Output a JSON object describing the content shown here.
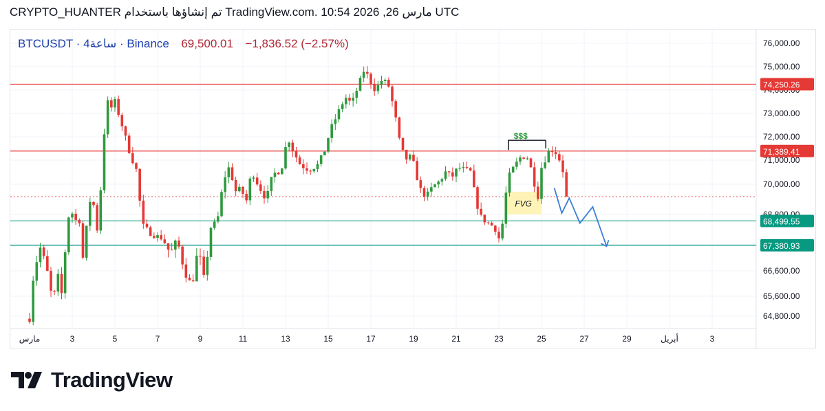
{
  "header": {
    "text": "CRYPTO_HUANTER تم إنشاؤها باستخدام TradingView.com. 10:54 2026 ,26 مارس UTC"
  },
  "legend": {
    "symbol": "BTCUSDT",
    "interval": "4ساعة",
    "exchange": "Binance",
    "price": "69,500.01",
    "change": "−1,836.52",
    "change_pct": "(−2.57%)",
    "separator": "·"
  },
  "brand": {
    "name": "TradingView",
    "logo_icon": "tradingview-logo-icon"
  },
  "colors": {
    "up": "#26a69a",
    "up_body": "#2e9a3e",
    "down": "#e53935",
    "resistance": "#e53935",
    "support": "#089981",
    "projection": "#3b7dd8",
    "fvg": "#fff3b0",
    "liquidity": "#2e9a3e"
  },
  "chart_data": {
    "type": "candlestick",
    "symbol": "BTCUSDT",
    "interval": "4ساعة",
    "exchange": "Binance",
    "x_tick_labels": [
      "مارس",
      "3",
      "5",
      "7",
      "9",
      "11",
      "13",
      "15",
      "17",
      "19",
      "21",
      "23",
      "25",
      "27",
      "29",
      "أبريل",
      "3"
    ],
    "y_tick_labels": [
      "76,000.00",
      "75,000.00",
      "74,000.00",
      "73,000.00",
      "72,000.00",
      "71,000.00",
      "70,000.00",
      "68,800.00",
      "67,400.00",
      "66,600.00",
      "65,600.00",
      "64,800.00"
    ],
    "ylim": [
      64500,
      76500
    ],
    "price_levels": [
      {
        "name": "resistance-upper",
        "value": 74250.26,
        "label": "74,250.26",
        "color": "#e53935"
      },
      {
        "name": "resistance-lower",
        "value": 71389.41,
        "label": "71,389.41",
        "color": "#e53935"
      },
      {
        "name": "support-upper",
        "value": 68499.55,
        "label": "68,499.55",
        "color": "#089981"
      },
      {
        "name": "support-lower",
        "value": 67380.93,
        "label": "67,380.93",
        "color": "#089981"
      }
    ],
    "last_price": 69500.01,
    "annotations": [
      {
        "text": "$$$",
        "type": "liquidity",
        "day_range": [
          23.45,
          24.6
        ],
        "price": 71850
      },
      {
        "text": "FVG",
        "type": "fvg-zone",
        "day_range": [
          23.3,
          25.0
        ],
        "price_range": [
          68800,
          69700
        ]
      }
    ],
    "projection_path": [
      {
        "day": 25.6,
        "price": 69850
      },
      {
        "day": 25.95,
        "price": 68850
      },
      {
        "day": 26.3,
        "price": 69450
      },
      {
        "day": 26.8,
        "price": 68400
      },
      {
        "day": 27.4,
        "price": 69100
      },
      {
        "day": 28.05,
        "price": 67350
      }
    ],
    "waypoints": [
      [
        1.0,
        64700
      ],
      [
        1.2,
        66600
      ],
      [
        1.5,
        67300
      ],
      [
        1.8,
        66700
      ],
      [
        2.1,
        65300
      ],
      [
        2.3,
        66500
      ],
      [
        2.5,
        65700
      ],
      [
        2.9,
        69300
      ],
      [
        3.1,
        68400
      ],
      [
        3.3,
        68800
      ],
      [
        3.5,
        67000
      ],
      [
        3.9,
        69800
      ],
      [
        4.2,
        67900
      ],
      [
        4.6,
        73600
      ],
      [
        4.8,
        73200
      ],
      [
        5.0,
        73500
      ],
      [
        5.3,
        72600
      ],
      [
        5.7,
        71300
      ],
      [
        6.0,
        70600
      ],
      [
        6.3,
        68300
      ],
      [
        6.7,
        67900
      ],
      [
        7.2,
        67700
      ],
      [
        7.6,
        67100
      ],
      [
        7.9,
        67600
      ],
      [
        8.3,
        66500
      ],
      [
        8.6,
        66000
      ],
      [
        8.9,
        67300
      ],
      [
        9.2,
        66200
      ],
      [
        9.5,
        68200
      ],
      [
        9.8,
        68500
      ],
      [
        10.1,
        70200
      ],
      [
        10.4,
        70800
      ],
      [
        10.6,
        69700
      ],
      [
        10.9,
        69800
      ],
      [
        11.2,
        69300
      ],
      [
        11.4,
        70600
      ],
      [
        11.7,
        70000
      ],
      [
        12.1,
        69400
      ],
      [
        12.4,
        70400
      ],
      [
        12.8,
        70600
      ],
      [
        13.1,
        72000
      ],
      [
        13.4,
        71300
      ],
      [
        13.7,
        70800
      ],
      [
        14.1,
        70600
      ],
      [
        14.5,
        70800
      ],
      [
        14.8,
        71300
      ],
      [
        15.1,
        72300
      ],
      [
        15.5,
        73100
      ],
      [
        15.8,
        73700
      ],
      [
        16.1,
        73400
      ],
      [
        16.5,
        74400
      ],
      [
        16.7,
        74900
      ],
      [
        16.9,
        74500
      ],
      [
        17.2,
        74000
      ],
      [
        17.5,
        74400
      ],
      [
        17.8,
        74300
      ],
      [
        18.1,
        73100
      ],
      [
        18.4,
        71500
      ],
      [
        18.7,
        71000
      ],
      [
        18.9,
        71200
      ],
      [
        19.3,
        69800
      ],
      [
        19.6,
        69500
      ],
      [
        19.9,
        69900
      ],
      [
        20.2,
        70100
      ],
      [
        20.5,
        70500
      ],
      [
        20.8,
        70300
      ],
      [
        21.1,
        70700
      ],
      [
        21.4,
        70600
      ],
      [
        21.7,
        70500
      ],
      [
        21.9,
        69400
      ],
      [
        22.2,
        68600
      ],
      [
        22.5,
        68400
      ],
      [
        22.8,
        68200
      ],
      [
        23.0,
        67700
      ],
      [
        23.2,
        68500
      ],
      [
        23.4,
        70200
      ],
      [
        23.7,
        70700
      ],
      [
        24.0,
        71100
      ],
      [
        24.3,
        71200
      ],
      [
        24.6,
        70400
      ],
      [
        24.8,
        69300
      ],
      [
        25.0,
        70700
      ],
      [
        25.2,
        71100
      ],
      [
        25.4,
        71500
      ],
      [
        25.7,
        71300
      ],
      [
        25.9,
        70900
      ],
      [
        26.05,
        70400
      ],
      [
        26.2,
        69500
      ]
    ],
    "grid": true
  }
}
